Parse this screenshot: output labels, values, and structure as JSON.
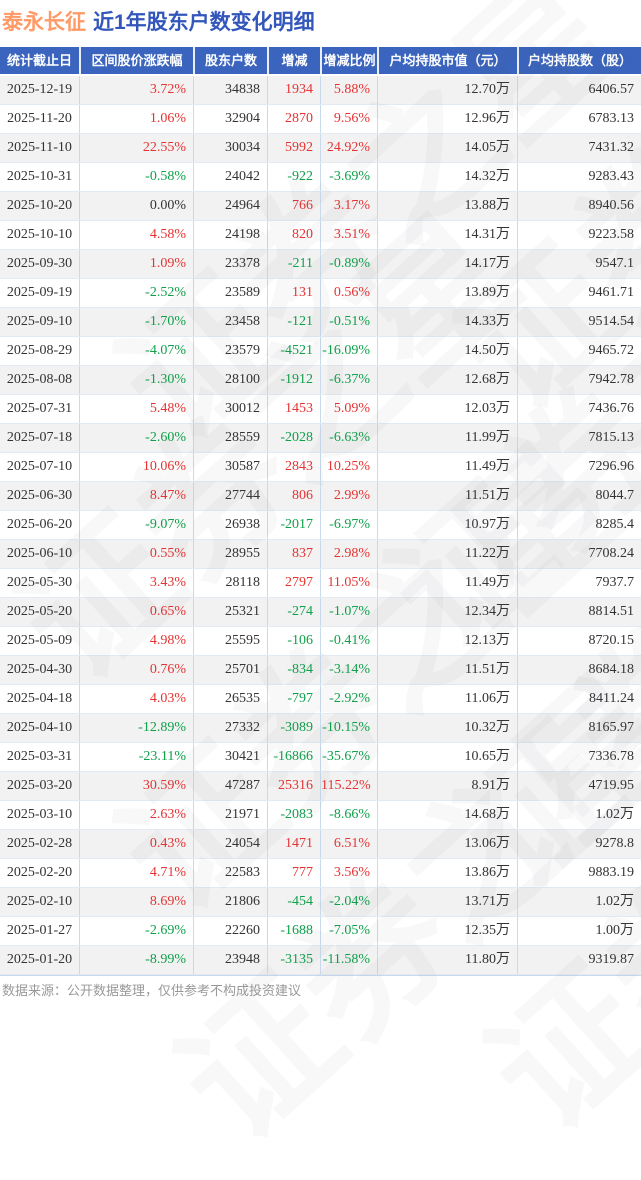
{
  "title": {
    "stock": "泰永长征",
    "subtitle": "近1年股东户数变化明细"
  },
  "footer": "数据来源：公开数据整理，仅供参考不构成投资建议",
  "watermark": "证券之星",
  "colors": {
    "up": "#e53333",
    "down": "#0fa04a",
    "neutral": "#333333",
    "header_bg": "#3a64bd",
    "header_text": "#ffffff",
    "title_stock": "#ff9966",
    "title_rest": "#3356bb",
    "row_alt_bg": "#f2f2f2",
    "grid_line": "#c9daed",
    "footer_text": "#999999"
  },
  "chart_data": {
    "type": "table",
    "title": "泰永长征 近1年股东户数变化明细",
    "columns": [
      "统计截止日",
      "区间股价涨跌幅",
      "股东户数",
      "增减",
      "增减比例",
      "户均持股市值（元）",
      "户均持股数（股）"
    ],
    "rows": [
      [
        "2025-12-19",
        "3.72%",
        "34838",
        "1934",
        "5.88%",
        "12.70万",
        "6406.57"
      ],
      [
        "2025-11-20",
        "1.06%",
        "32904",
        "2870",
        "9.56%",
        "12.96万",
        "6783.13"
      ],
      [
        "2025-11-10",
        "22.55%",
        "30034",
        "5992",
        "24.92%",
        "14.05万",
        "7431.32"
      ],
      [
        "2025-10-31",
        "-0.58%",
        "24042",
        "-922",
        "-3.69%",
        "14.32万",
        "9283.43"
      ],
      [
        "2025-10-20",
        "0.00%",
        "24964",
        "766",
        "3.17%",
        "13.88万",
        "8940.56"
      ],
      [
        "2025-10-10",
        "4.58%",
        "24198",
        "820",
        "3.51%",
        "14.31万",
        "9223.58"
      ],
      [
        "2025-09-30",
        "1.09%",
        "23378",
        "-211",
        "-0.89%",
        "14.17万",
        "9547.1"
      ],
      [
        "2025-09-19",
        "-2.52%",
        "23589",
        "131",
        "0.56%",
        "13.89万",
        "9461.71"
      ],
      [
        "2025-09-10",
        "-1.70%",
        "23458",
        "-121",
        "-0.51%",
        "14.33万",
        "9514.54"
      ],
      [
        "2025-08-29",
        "-4.07%",
        "23579",
        "-4521",
        "-16.09%",
        "14.50万",
        "9465.72"
      ],
      [
        "2025-08-08",
        "-1.30%",
        "28100",
        "-1912",
        "-6.37%",
        "12.68万",
        "7942.78"
      ],
      [
        "2025-07-31",
        "5.48%",
        "30012",
        "1453",
        "5.09%",
        "12.03万",
        "7436.76"
      ],
      [
        "2025-07-18",
        "-2.60%",
        "28559",
        "-2028",
        "-6.63%",
        "11.99万",
        "7815.13"
      ],
      [
        "2025-07-10",
        "10.06%",
        "30587",
        "2843",
        "10.25%",
        "11.49万",
        "7296.96"
      ],
      [
        "2025-06-30",
        "8.47%",
        "27744",
        "806",
        "2.99%",
        "11.51万",
        "8044.7"
      ],
      [
        "2025-06-20",
        "-9.07%",
        "26938",
        "-2017",
        "-6.97%",
        "10.97万",
        "8285.4"
      ],
      [
        "2025-06-10",
        "0.55%",
        "28955",
        "837",
        "2.98%",
        "11.22万",
        "7708.24"
      ],
      [
        "2025-05-30",
        "3.43%",
        "28118",
        "2797",
        "11.05%",
        "11.49万",
        "7937.7"
      ],
      [
        "2025-05-20",
        "0.65%",
        "25321",
        "-274",
        "-1.07%",
        "12.34万",
        "8814.51"
      ],
      [
        "2025-05-09",
        "4.98%",
        "25595",
        "-106",
        "-0.41%",
        "12.13万",
        "8720.15"
      ],
      [
        "2025-04-30",
        "0.76%",
        "25701",
        "-834",
        "-3.14%",
        "11.51万",
        "8684.18"
      ],
      [
        "2025-04-18",
        "4.03%",
        "26535",
        "-797",
        "-2.92%",
        "11.06万",
        "8411.24"
      ],
      [
        "2025-04-10",
        "-12.89%",
        "27332",
        "-3089",
        "-10.15%",
        "10.32万",
        "8165.97"
      ],
      [
        "2025-03-31",
        "-23.11%",
        "30421",
        "-16866",
        "-35.67%",
        "10.65万",
        "7336.78"
      ],
      [
        "2025-03-20",
        "30.59%",
        "47287",
        "25316",
        "115.22%",
        "8.91万",
        "4719.95"
      ],
      [
        "2025-03-10",
        "2.63%",
        "21971",
        "-2083",
        "-8.66%",
        "14.68万",
        "1.02万"
      ],
      [
        "2025-02-28",
        "0.43%",
        "24054",
        "1471",
        "6.51%",
        "13.06万",
        "9278.8"
      ],
      [
        "2025-02-20",
        "4.71%",
        "22583",
        "777",
        "3.56%",
        "13.86万",
        "9883.19"
      ],
      [
        "2025-02-10",
        "8.69%",
        "21806",
        "-454",
        "-2.04%",
        "13.71万",
        "1.02万"
      ],
      [
        "2025-01-27",
        "-2.69%",
        "22260",
        "-1688",
        "-7.05%",
        "12.35万",
        "1.00万"
      ],
      [
        "2025-01-20",
        "-8.99%",
        "23948",
        "-3135",
        "-11.58%",
        "11.80万",
        "9319.87"
      ]
    ]
  }
}
